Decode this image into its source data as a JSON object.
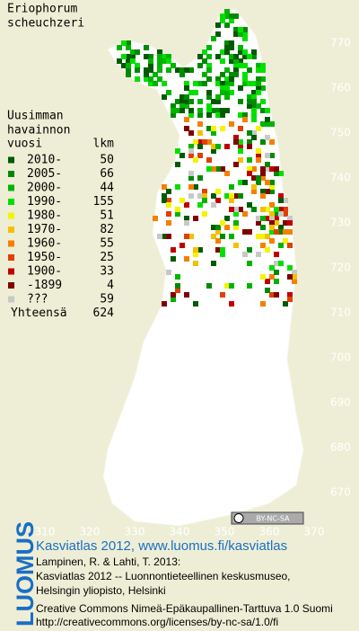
{
  "title": [
    "Eriophorum",
    "scheuchzeri"
  ],
  "legend": {
    "heading": [
      "Uusimman",
      "havainnon",
      "vuosi"
    ],
    "count_heading": "lkm",
    "rows": [
      {
        "label": "2010-",
        "count": 50,
        "color": "#005a00"
      },
      {
        "label": "2005-",
        "count": 66,
        "color": "#008a00"
      },
      {
        "label": "2000-",
        "count": 44,
        "color": "#00b400"
      },
      {
        "label": "1990-",
        "count": 155,
        "color": "#00e000"
      },
      {
        "label": "1980-",
        "count": 51,
        "color": "#f4f400"
      },
      {
        "label": "1970-",
        "count": 82,
        "color": "#f4c000"
      },
      {
        "label": "1960-",
        "count": 55,
        "color": "#f48000"
      },
      {
        "label": "1950-",
        "count": 25,
        "color": "#e04000"
      },
      {
        "label": "1900-",
        "count": 33,
        "color": "#c00000"
      },
      {
        "label": "-1899",
        "count": 4,
        "color": "#800000"
      },
      {
        "label": "???",
        "count": 59,
        "color": "#c8c8c8"
      }
    ],
    "total_label": "Yhteensä",
    "total": 624
  },
  "grid": {
    "x_labels": [
      310,
      320,
      330,
      340,
      350,
      360,
      370
    ],
    "y_labels": [
      770,
      760,
      750,
      740,
      730,
      720,
      710,
      700,
      690,
      680,
      670
    ]
  },
  "cc_badge": "BY-NC-SA",
  "credits": {
    "logo": "LUOMUS",
    "site": "Kasviatlas 2012, www.luomus.fi/kasviatlas",
    "citation": [
      "Lampinen, R. & Lahti, T. 2013:",
      "Kasviatlas 2012 -- Luonnontieteellinen keskusmuseo,",
      "Helsingin yliopisto, Helsinki"
    ],
    "license": [
      "Creative Commons Nimeä-Epäkaupallinen-Tarttuva 1.0 Suomi",
      "http://creativecommons.org/licenses/by-nc-sa/1.0/fi"
    ]
  }
}
